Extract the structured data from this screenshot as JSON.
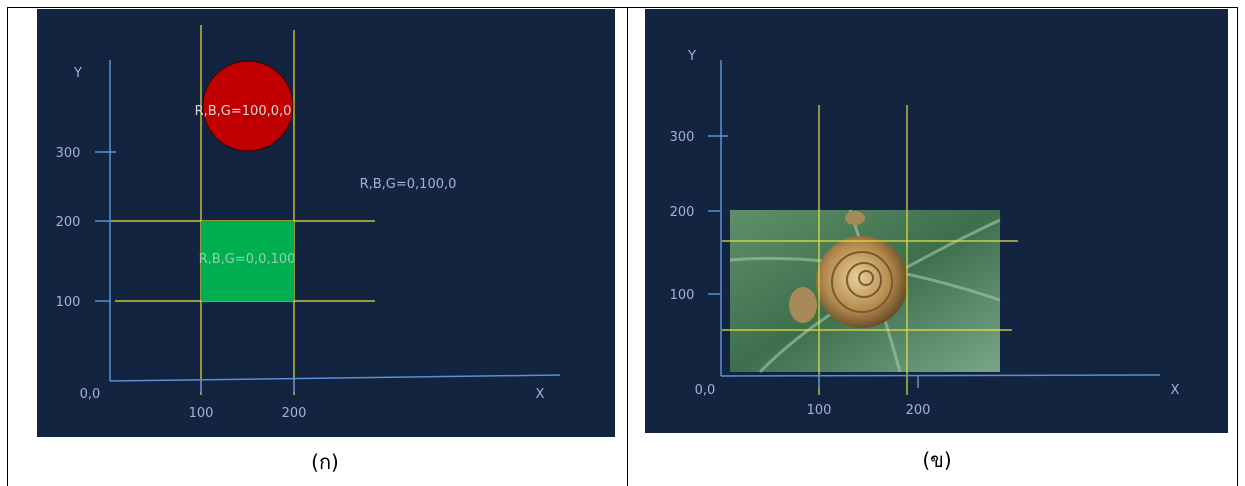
{
  "left": {
    "y_label": "Y",
    "x_label": "X",
    "origin": "0,0",
    "y_ticks": [
      "300",
      "200",
      "100"
    ],
    "x_ticks": [
      "100",
      "200"
    ],
    "red_label": "R,B,G=100,0,0",
    "green_label": "R,B,G=0,0,100",
    "background_label": "R,B,G=0,100,0",
    "caption": "(ก)"
  },
  "right": {
    "y_label": "Y",
    "x_label": "X",
    "origin": "0,0",
    "y_ticks": [
      "300",
      "200",
      "100"
    ],
    "x_ticks": [
      "100",
      "200"
    ],
    "caption": "(ข)"
  }
}
